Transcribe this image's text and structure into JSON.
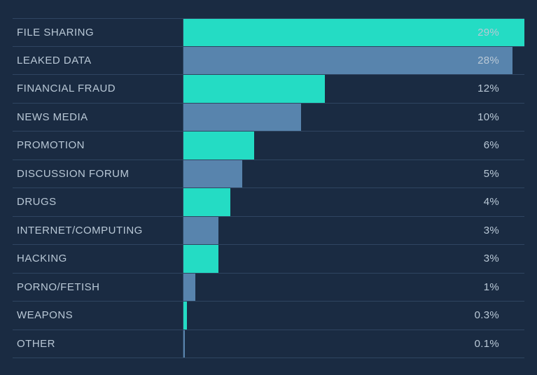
{
  "chart": {
    "type": "bar-horizontal",
    "background_color": "#1a2b42",
    "grid_color": "#2f4561",
    "label_text_color": "#b9c8d6",
    "value_text_color": "#b9c8d6",
    "label_fontsize": 15,
    "value_fontsize": 15,
    "max_value": 29,
    "bar_area_ratio": 1.0,
    "colors": {
      "teal": "#24dcc4",
      "steel": "#5884ad"
    },
    "rows": [
      {
        "label": "FILE SHARING",
        "value": 29,
        "display": "29%",
        "color_key": "teal"
      },
      {
        "label": "LEAKED DATA",
        "value": 28,
        "display": "28%",
        "color_key": "steel"
      },
      {
        "label": "FINANCIAL FRAUD",
        "value": 12,
        "display": "12%",
        "color_key": "teal"
      },
      {
        "label": "NEWS MEDIA",
        "value": 10,
        "display": "10%",
        "color_key": "steel"
      },
      {
        "label": "PROMOTION",
        "value": 6,
        "display": "6%",
        "color_key": "teal"
      },
      {
        "label": "DISCUSSION FORUM",
        "value": 5,
        "display": "5%",
        "color_key": "steel"
      },
      {
        "label": "DRUGS",
        "value": 4,
        "display": "4%",
        "color_key": "teal"
      },
      {
        "label": "INTERNET/COMPUTING",
        "value": 3,
        "display": "3%",
        "color_key": "steel"
      },
      {
        "label": "HACKING",
        "value": 3,
        "display": "3%",
        "color_key": "teal"
      },
      {
        "label": "PORNO/FETISH",
        "value": 1,
        "display": "1%",
        "color_key": "steel"
      },
      {
        "label": "WEAPONS",
        "value": 0.3,
        "display": "0.3%",
        "color_key": "teal"
      },
      {
        "label": "OTHER",
        "value": 0.1,
        "display": "0.1%",
        "color_key": "steel"
      }
    ]
  }
}
